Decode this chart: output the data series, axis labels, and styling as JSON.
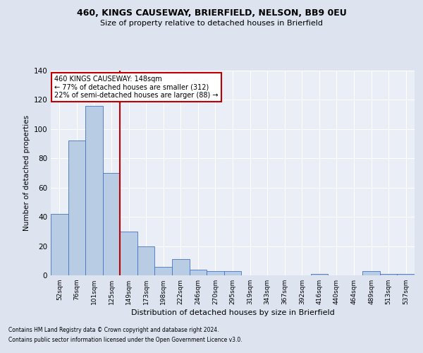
{
  "title1": "460, KINGS CAUSEWAY, BRIERFIELD, NELSON, BB9 0EU",
  "title2": "Size of property relative to detached houses in Brierfield",
  "xlabel": "Distribution of detached houses by size in Brierfield",
  "ylabel": "Number of detached properties",
  "categories": [
    "52sqm",
    "76sqm",
    "101sqm",
    "125sqm",
    "149sqm",
    "173sqm",
    "198sqm",
    "222sqm",
    "246sqm",
    "270sqm",
    "295sqm",
    "319sqm",
    "343sqm",
    "367sqm",
    "392sqm",
    "416sqm",
    "440sqm",
    "464sqm",
    "489sqm",
    "513sqm",
    "537sqm"
  ],
  "values": [
    42,
    92,
    116,
    70,
    30,
    20,
    6,
    11,
    4,
    3,
    3,
    0,
    0,
    0,
    0,
    1,
    0,
    0,
    3,
    1,
    1
  ],
  "bar_color": "#b8cce4",
  "bar_edge_color": "#4472c4",
  "vline_x": 3.5,
  "vline_color": "#c00000",
  "annotation_text": "460 KINGS CAUSEWAY: 148sqm\n← 77% of detached houses are smaller (312)\n22% of semi-detached houses are larger (88) →",
  "annotation_box_edge_color": "#c00000",
  "ylim": [
    0,
    140
  ],
  "footnote1": "Contains HM Land Registry data © Crown copyright and database right 2024.",
  "footnote2": "Contains public sector information licensed under the Open Government Licence v3.0.",
  "fig_bg": "#dde4f0",
  "ax_bg": "#eaeef7"
}
